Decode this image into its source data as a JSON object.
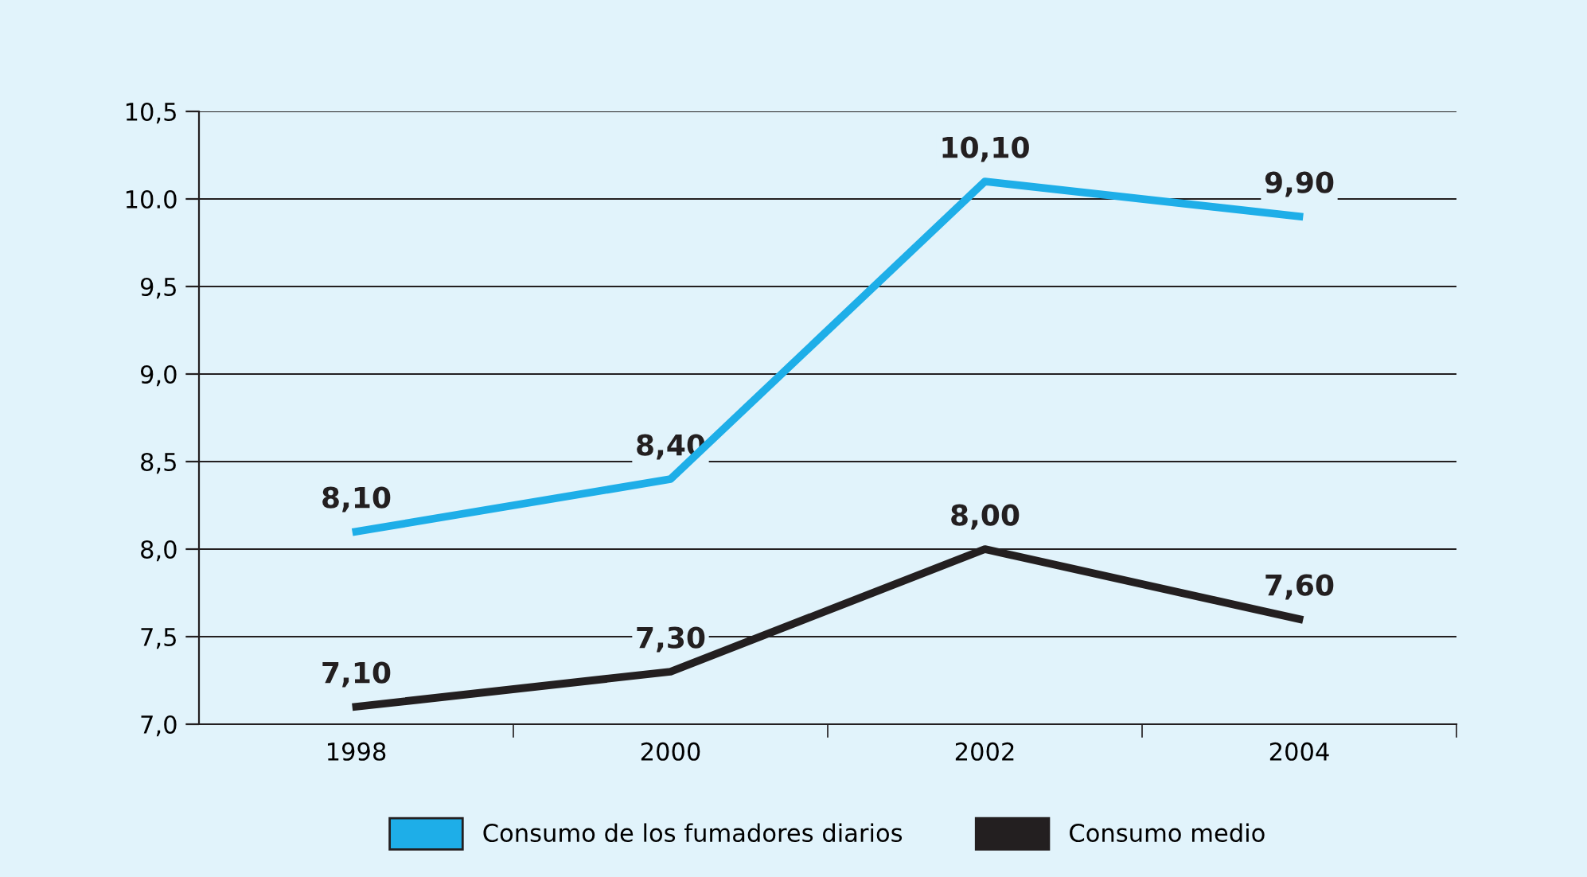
{
  "chart_data": {
    "type": "line",
    "categories": [
      "1998",
      "2000",
      "2002",
      "2004"
    ],
    "series": [
      {
        "name": "Consumo de los fumadores diarios",
        "color": "#1eaee8",
        "values": [
          8.1,
          8.4,
          10.1,
          9.9
        ],
        "value_labels": [
          "8,10",
          "8,40",
          "10,10",
          "9,90"
        ]
      },
      {
        "name": "Consumo medio",
        "color": "#231f20",
        "values": [
          7.1,
          7.3,
          8.0,
          7.6
        ],
        "value_labels": [
          "7,10",
          "7,30",
          "8,00",
          "7,60"
        ]
      }
    ],
    "ylim": [
      7.0,
      10.5
    ],
    "yticks": [
      {
        "value": 7.0,
        "label": "7,0"
      },
      {
        "value": 7.5,
        "label": "7,5"
      },
      {
        "value": 8.0,
        "label": "8,0"
      },
      {
        "value": 8.5,
        "label": "8,5"
      },
      {
        "value": 9.0,
        "label": "9,0"
      },
      {
        "value": 9.5,
        "label": "9,5"
      },
      {
        "value": 10.0,
        "label": "10.0"
      },
      {
        "value": 10.5,
        "label": "10,5"
      }
    ],
    "grid": "y",
    "legend": "bottom",
    "marker": "none",
    "line_style": "solid"
  }
}
